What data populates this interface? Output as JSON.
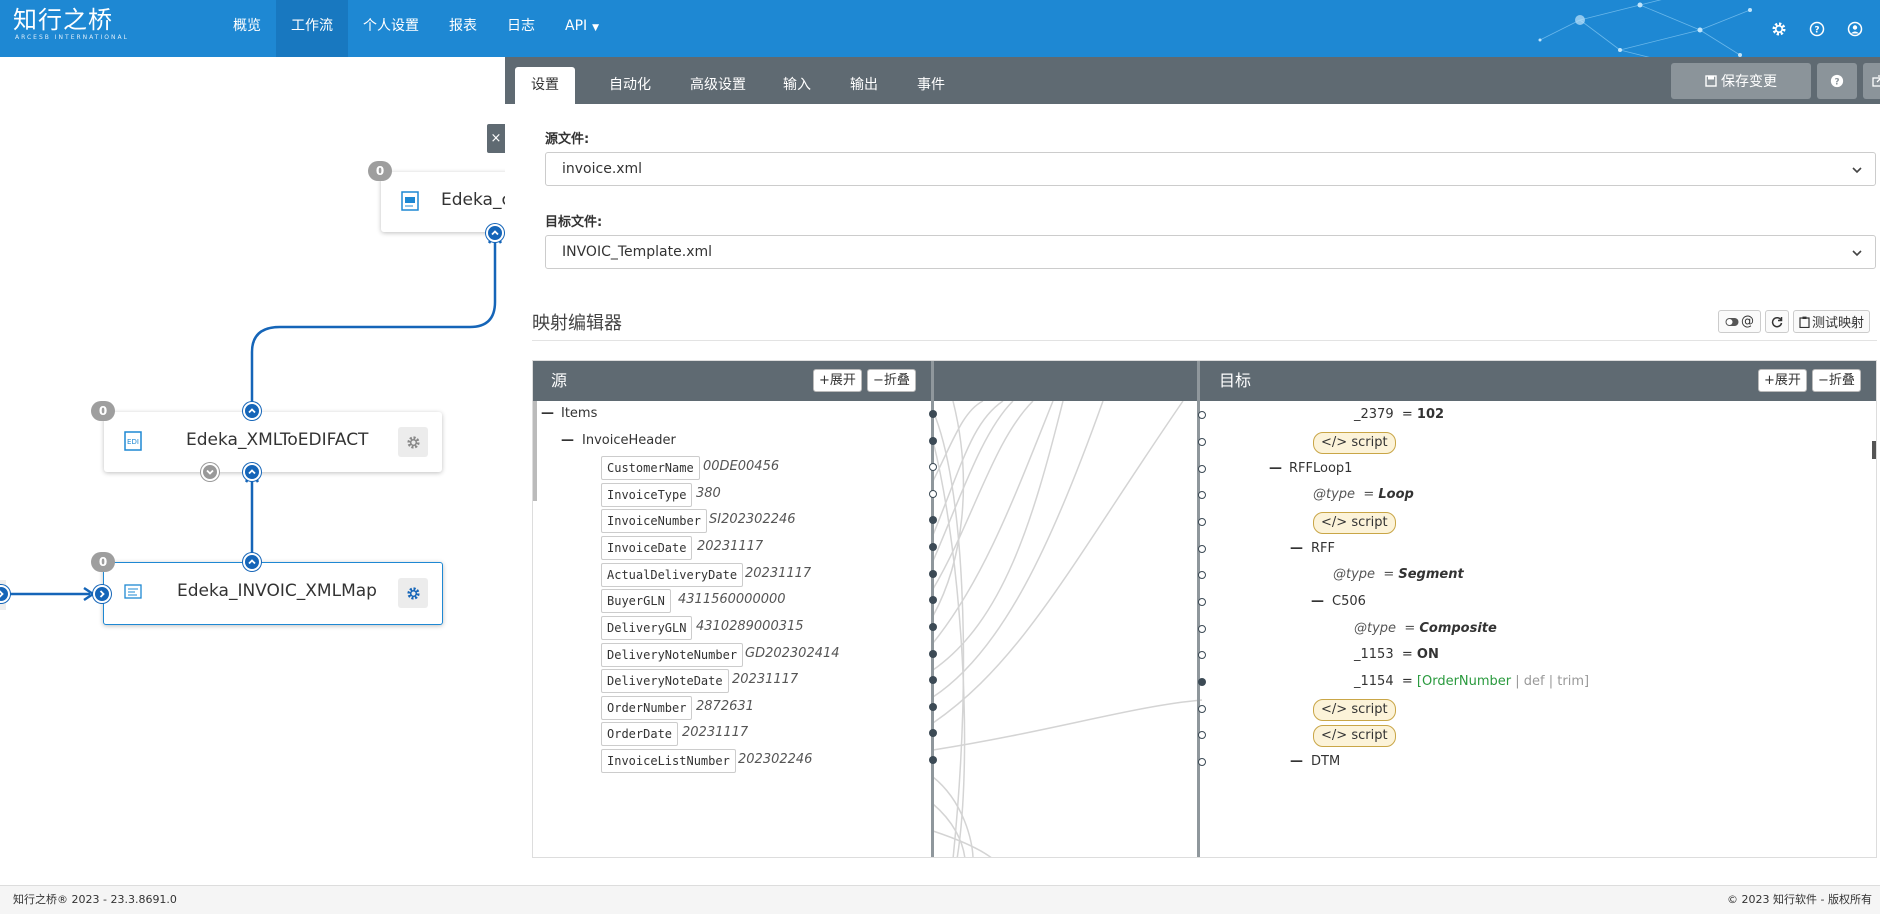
{
  "app": {
    "logo_main": "知行之桥",
    "logo_sub": "ARCESB INTERNATIONAL"
  },
  "nav": {
    "items": [
      {
        "label": "概览"
      },
      {
        "label": "工作流",
        "active": true
      },
      {
        "label": "个人设置"
      },
      {
        "label": "报表"
      },
      {
        "label": "日志"
      },
      {
        "label": "API"
      }
    ]
  },
  "top_icons": [
    "gear-icon",
    "help-icon",
    "user-icon"
  ],
  "canvas": {
    "nodes": [
      {
        "name": "Edeka_c",
        "badge": "0"
      },
      {
        "name": "Edeka_XMLToEDIFACT",
        "badge": "0"
      },
      {
        "name": "Edeka_INVOIC_XMLMap",
        "badge": "0",
        "selected": true
      }
    ],
    "close_label": "×"
  },
  "panel": {
    "tabs": [
      {
        "label": "设置",
        "active": true
      },
      {
        "label": "自动化"
      },
      {
        "label": "高级设置"
      },
      {
        "label": "输入"
      },
      {
        "label": "输出"
      },
      {
        "label": "事件"
      }
    ],
    "save_label": "保存变更",
    "source_file_label": "源文件:",
    "source_file_value": "invoice.xml",
    "target_file_label": "目标文件:",
    "target_file_value": "INVOIC_Template.xml",
    "editor_title": "映射编辑器",
    "toggle_label": "@",
    "test_label": "测试映射"
  },
  "mapper": {
    "source_header": "源",
    "target_header": "目标",
    "expand_label": "展开",
    "collapse_label": "折叠",
    "source_rows": [
      {
        "type": "group",
        "name": "Items"
      },
      {
        "type": "group",
        "name": "InvoiceHeader"
      },
      {
        "type": "field",
        "name": "CustomerName",
        "value": "00DE00456",
        "mapped": true
      },
      {
        "type": "field",
        "name": "InvoiceType",
        "value": "380",
        "mapped": false
      },
      {
        "type": "field",
        "name": "InvoiceNumber",
        "value": "SI202302246",
        "mapped": true
      },
      {
        "type": "field",
        "name": "InvoiceDate",
        "value": "20231117",
        "mapped": true
      },
      {
        "type": "field",
        "name": "ActualDeliveryDate",
        "value": "20231117",
        "mapped": true
      },
      {
        "type": "field",
        "name": "BuyerGLN",
        "value": "4311560000000",
        "mapped": true
      },
      {
        "type": "field",
        "name": "DeliveryGLN",
        "value": "4310289000315",
        "mapped": true
      },
      {
        "type": "field",
        "name": "DeliveryNoteNumber",
        "value": "GD202302414",
        "mapped": true
      },
      {
        "type": "field",
        "name": "DeliveryNoteDate",
        "value": "20231117",
        "mapped": true
      },
      {
        "type": "field",
        "name": "OrderNumber",
        "value": "2872631",
        "mapped": true
      },
      {
        "type": "field",
        "name": "OrderDate",
        "value": "20231117",
        "mapped": true
      },
      {
        "type": "field",
        "name": "InvoiceListNumber",
        "value": "202302246",
        "mapped": true
      }
    ],
    "target_rows": [
      {
        "kind": "value",
        "name": "_2379",
        "eq": "=",
        "value": "102"
      },
      {
        "kind": "script",
        "label": "script"
      },
      {
        "kind": "group",
        "name": "RFFLoop1"
      },
      {
        "kind": "attr",
        "name": "@type",
        "eq": "=",
        "value": "Loop"
      },
      {
        "kind": "script",
        "label": "script"
      },
      {
        "kind": "group",
        "name": "RFF"
      },
      {
        "kind": "attr",
        "name": "@type",
        "eq": "=",
        "value": "Segment"
      },
      {
        "kind": "group",
        "name": "C506"
      },
      {
        "kind": "attr",
        "name": "@type",
        "eq": "=",
        "value": "Composite"
      },
      {
        "kind": "value",
        "name": "_1153",
        "eq": "=",
        "value": "ON"
      },
      {
        "kind": "expr",
        "name": "_1154",
        "eq": "=",
        "expr_open": "[",
        "expr_field": "OrderNumber",
        "expr_rest": " | def | trim]"
      },
      {
        "kind": "script",
        "label": "script"
      },
      {
        "kind": "script",
        "label": "script"
      },
      {
        "kind": "group",
        "name": "DTM"
      }
    ]
  },
  "footer": {
    "left": "知行之桥® 2023 - 23.3.8691.0",
    "right": "© 2023 知行软件 - 版权所有"
  },
  "colors": {
    "brand_blue": "#1e88d3",
    "header_grey": "#5f6a72",
    "port_blue": "#1565b8",
    "expr_green": "#2a9a3e"
  }
}
